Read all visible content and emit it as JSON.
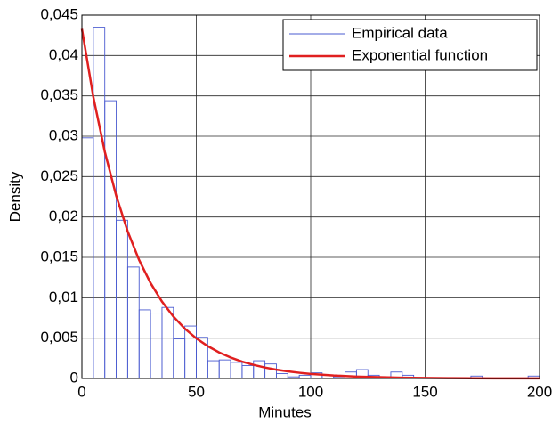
{
  "chart_data": {
    "type": "histogram",
    "xlabel": "Minutes",
    "ylabel": "Density",
    "bins": [
      0,
      5,
      10,
      15,
      20,
      25,
      30,
      35,
      40,
      45,
      50,
      55,
      60,
      65,
      70,
      75,
      80,
      85,
      90,
      95,
      100,
      105,
      110,
      115,
      120,
      125,
      130,
      135,
      140,
      145,
      150,
      155,
      160,
      165,
      170,
      175,
      180,
      185,
      190,
      195,
      200
    ],
    "series": [
      {
        "name": "Empirical data",
        "type": "histogram",
        "color": "#4a5bd0",
        "values": [
          0.0298,
          0.0435,
          0.0344,
          0.0196,
          0.0138,
          0.0085,
          0.0081,
          0.0088,
          0.0049,
          0.0065,
          0.0051,
          0.0022,
          0.0023,
          0.002,
          0.0016,
          0.0022,
          0.0018,
          0.0006,
          0.0002,
          0.0004,
          0.0007,
          0.0004,
          0.0002,
          0.0008,
          0.0011,
          0.0004,
          0.0002,
          0.0008,
          0.0004,
          0,
          0,
          0,
          0,
          0,
          0.0003,
          0,
          0,
          0,
          0,
          0.0003
        ]
      },
      {
        "name": "Exponential function",
        "type": "line",
        "color": "#e02020",
        "x": [
          0,
          5,
          10,
          15,
          20,
          25,
          30,
          35,
          40,
          45,
          50,
          55,
          60,
          65,
          70,
          75,
          80,
          85,
          90,
          95,
          100,
          110,
          120,
          130,
          140,
          150,
          160,
          170,
          180,
          190,
          200
        ],
        "values": [
          0.0433,
          0.03487,
          0.02809,
          0.02262,
          0.01822,
          0.01467,
          0.01182,
          0.00952,
          0.00767,
          0.00617,
          0.00497,
          0.00401,
          0.00323,
          0.0026,
          0.00209,
          0.00169,
          0.00136,
          0.00109,
          0.00088,
          0.00071,
          0.00057,
          0.00037,
          0.00024,
          0.00016,
          0.0001,
          7e-05,
          4e-05,
          3e-05,
          2e-05,
          1e-05,
          1e-05
        ]
      }
    ],
    "xlim": [
      0,
      200
    ],
    "xticks": [
      0,
      50,
      100,
      150,
      200
    ],
    "ylim": [
      0,
      0.045
    ],
    "yticks": [
      0,
      {
        "value": 0.005,
        "label": "0,005"
      },
      {
        "value": 0.01,
        "label": "0,01"
      },
      {
        "value": 0.015,
        "label": "0,015"
      },
      {
        "value": 0.02,
        "label": "0,02"
      },
      {
        "value": 0.025,
        "label": "0,025"
      },
      {
        "value": 0.03,
        "label": "0,03"
      },
      {
        "value": 0.035,
        "label": "0,035"
      },
      {
        "value": 0.04,
        "label": "0,04"
      },
      {
        "value": 0.045,
        "label": "0,045"
      }
    ],
    "grid": true,
    "legend": "upper right"
  }
}
